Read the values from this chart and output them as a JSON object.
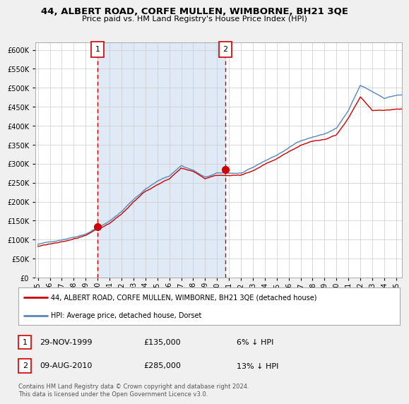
{
  "title": "44, ALBERT ROAD, CORFE MULLEN, WIMBORNE, BH21 3QE",
  "subtitle": "Price paid vs. HM Land Registry's House Price Index (HPI)",
  "ylim": [
    0,
    620000
  ],
  "yticks": [
    0,
    50000,
    100000,
    150000,
    200000,
    250000,
    300000,
    350000,
    400000,
    450000,
    500000,
    550000,
    600000
  ],
  "background_color": "#f0f0f0",
  "plot_background": "#ffffff",
  "plot_fill_color": "#ddeeff",
  "legend_label_red": "44, ALBERT ROAD, CORFE MULLEN, WIMBORNE, BH21 3QE (detached house)",
  "legend_label_blue": "HPI: Average price, detached house, Dorset",
  "purchase1_date": "29-NOV-1999",
  "purchase1_price": 135000,
  "purchase1_label": "6% ↓ HPI",
  "purchase2_date": "09-AUG-2010",
  "purchase2_price": 285000,
  "purchase2_label": "13% ↓ HPI",
  "footer": "Contains HM Land Registry data © Crown copyright and database right 2024.\nThis data is licensed under the Open Government Licence v3.0.",
  "purchase1_x": 2000.0,
  "purchase2_x": 2010.67,
  "marker1_y": 135000,
  "marker2_y": 285000,
  "red_color": "#cc0000",
  "blue_color": "#5588bb",
  "blue_fill_color": "#ccddf0",
  "xlim_left": 1994.8,
  "xlim_right": 2025.5,
  "xtick_start": 1995,
  "xtick_end": 2025
}
